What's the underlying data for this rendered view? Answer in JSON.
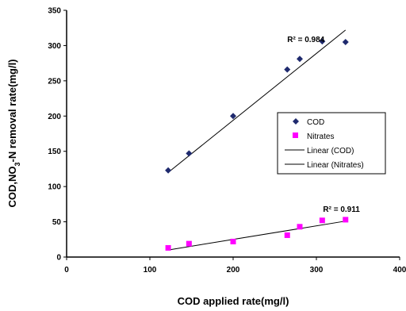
{
  "chart_data": {
    "type": "scatter",
    "xlabel": "COD applied rate(mg/l)",
    "ylabel_prefix": "COD,NO",
    "ylabel_sub": "3",
    "ylabel_suffix": "-N removal rate(mg/l)",
    "xlim": [
      0,
      400
    ],
    "ylim": [
      0,
      350
    ],
    "x_ticks": [
      "0",
      "100",
      "200",
      "300",
      "400"
    ],
    "y_ticks": [
      "0",
      "50",
      "100",
      "150",
      "200",
      "250",
      "300",
      "350"
    ],
    "grid": false,
    "legend_position": "right",
    "series": [
      {
        "name": "COD",
        "marker": "diamond",
        "color": "#1f2a6e",
        "points": [
          [
            122,
            123
          ],
          [
            147,
            147
          ],
          [
            200,
            200
          ],
          [
            265,
            266
          ],
          [
            280,
            281
          ],
          [
            307,
            306
          ],
          [
            335,
            305
          ]
        ]
      },
      {
        "name": "Nitrates",
        "marker": "square",
        "color": "#ff00ff",
        "points": [
          [
            122,
            13
          ],
          [
            147,
            19
          ],
          [
            200,
            22
          ],
          [
            265,
            31
          ],
          [
            280,
            43
          ],
          [
            307,
            52
          ],
          [
            335,
            53
          ]
        ]
      }
    ],
    "trendlines": [
      {
        "name": "Linear (COD)",
        "color": "#000000",
        "x0": 122,
        "y0": 120,
        "x1": 335,
        "y1": 322
      },
      {
        "name": "Linear (Nitrates)",
        "color": "#000000",
        "x0": 122,
        "y0": 10,
        "x1": 335,
        "y1": 51
      }
    ],
    "annotations": [
      {
        "text": "R² = 0.984",
        "x": 265,
        "y": 305
      },
      {
        "text": "R² = 0.911",
        "x": 308,
        "y": 64
      }
    ]
  }
}
